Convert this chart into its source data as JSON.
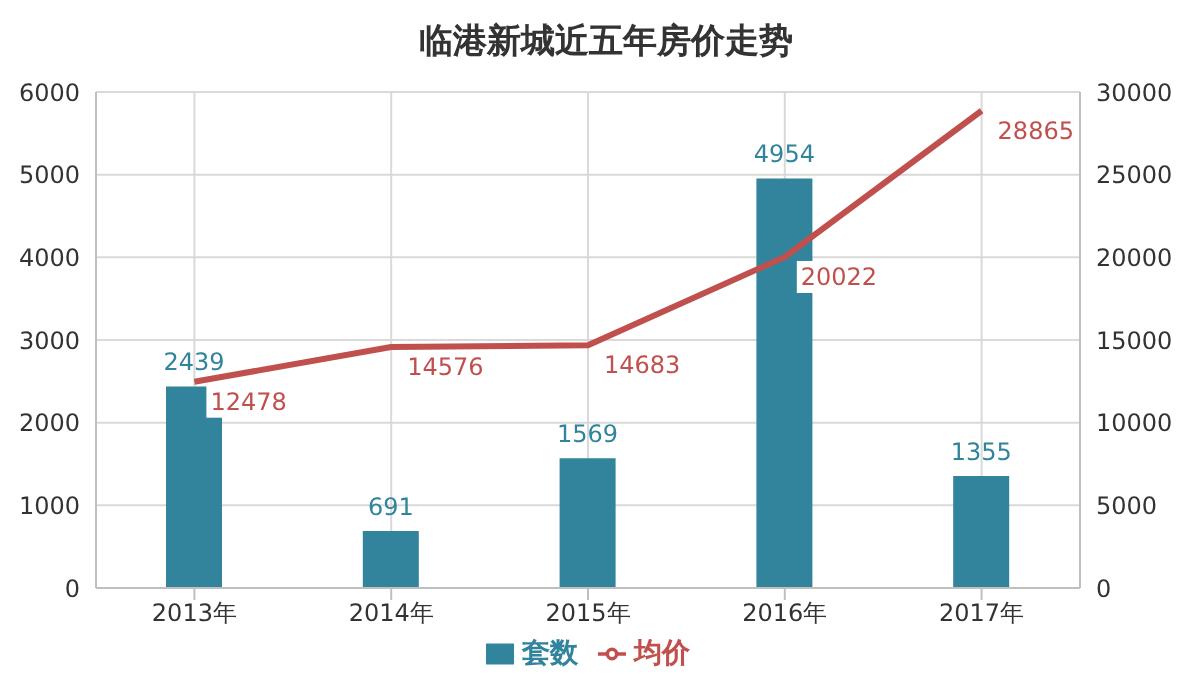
{
  "chart_data": {
    "type": "bar",
    "title": "临港新城近五年房价走势",
    "categories": [
      "2013年",
      "2014年",
      "2015年",
      "2016年",
      "2017年"
    ],
    "series": [
      {
        "name": "套数",
        "color": "#31849b",
        "values": [
          2439,
          691,
          1569,
          4954,
          1355
        ]
      },
      {
        "name": "均价",
        "type": "line",
        "axis": "y2",
        "color": "#c0504d",
        "values": [
          12478,
          14576,
          14683,
          20022,
          28865
        ]
      }
    ],
    "ylim": [
      0,
      6000
    ],
    "yticks": [
      0,
      1000,
      2000,
      3000,
      4000,
      5000,
      6000
    ],
    "y2lim": [
      0,
      30000
    ],
    "y2ticks": [
      0,
      5000,
      10000,
      15000,
      20000,
      25000,
      30000
    ],
    "grid": true,
    "legend": "bottom",
    "data_labels": true,
    "marker": "none"
  }
}
